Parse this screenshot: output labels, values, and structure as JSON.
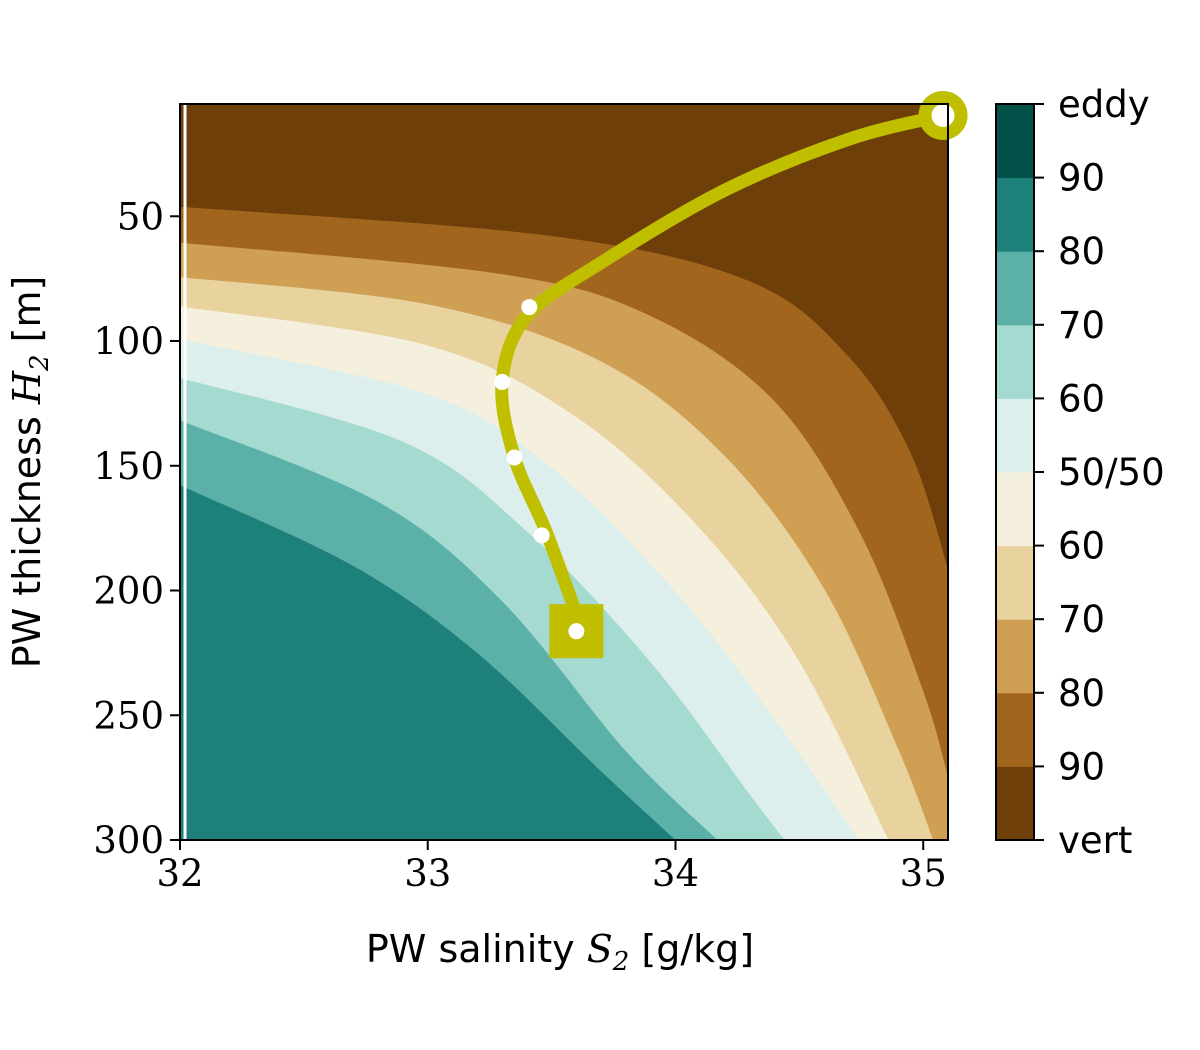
{
  "chart_data": {
    "type": "contour",
    "xlabel": {
      "prefix": "PW salinity ",
      "symbol": "S",
      "subscript": "2",
      "unit": " [g/kg]"
    },
    "ylabel": {
      "prefix": "PW thickness ",
      "symbol": "H",
      "subscript": "2",
      "unit": " [m]"
    },
    "xlim": [
      32,
      35.1
    ],
    "ylim": [
      300,
      5
    ],
    "y_inverted": true,
    "xticks": [
      32,
      33,
      34,
      35
    ],
    "yticks": [
      50,
      100,
      150,
      200,
      250,
      300
    ],
    "contour_levels": [
      {
        "label": "vert 90+",
        "color": "#6e3f08"
      },
      {
        "label": "90",
        "color": "#a2651e"
      },
      {
        "label": "80",
        "color": "#cf9f54"
      },
      {
        "label": "70",
        "color": "#e8d29e"
      },
      {
        "label": "60",
        "color": "#f5efde"
      },
      {
        "label": "50/50",
        "color": "#dcefed"
      },
      {
        "label": "60",
        "color": "#a5dad1"
      },
      {
        "label": "70",
        "color": "#5bb1a8"
      },
      {
        "label": "80",
        "color": "#1d807a"
      },
      {
        "label": "90+",
        "color": "#02524a"
      }
    ],
    "contour_boundaries": [
      [
        [
          32.0,
          46.2
        ],
        [
          33.5,
          57.9
        ],
        [
          34.3,
          76.1
        ],
        [
          34.7,
          106.4
        ],
        [
          34.95,
          145.1
        ],
        [
          35.1,
          191.4
        ]
      ],
      [
        [
          32.0,
          60.6
        ],
        [
          33.3,
          73.2
        ],
        [
          33.9,
          90.0
        ],
        [
          34.4,
          124.2
        ],
        [
          34.75,
          178.0
        ],
        [
          35.0,
          240.4
        ],
        [
          35.1,
          274.6
        ]
      ],
      [
        [
          32.0,
          74.4
        ],
        [
          33.0,
          85.3
        ],
        [
          33.7,
          108.2
        ],
        [
          34.2,
          146.2
        ],
        [
          34.6,
          199.3
        ],
        [
          34.9,
          263.8
        ],
        [
          35.04,
          300.0
        ]
      ],
      [
        [
          32.0,
          86.1
        ],
        [
          33.0,
          101.8
        ],
        [
          33.6,
          130.5
        ],
        [
          34.1,
          175.3
        ],
        [
          34.5,
          228.5
        ],
        [
          34.86,
          300.0
        ]
      ],
      [
        [
          32.0,
          99.3
        ],
        [
          33.0,
          121.4
        ],
        [
          33.5,
          151.0
        ],
        [
          34.0,
          200.6
        ],
        [
          34.4,
          251.6
        ],
        [
          34.74,
          300.0
        ]
      ],
      [
        [
          32.0,
          114.8
        ],
        [
          32.9,
          140.4
        ],
        [
          33.4,
          176.3
        ],
        [
          33.9,
          228.8
        ],
        [
          34.3,
          281.8
        ],
        [
          34.44,
          300.0
        ]
      ],
      [
        [
          32.0,
          131.8
        ],
        [
          32.8,
          164.5
        ],
        [
          33.3,
          204.3
        ],
        [
          33.8,
          264.4
        ],
        [
          34.17,
          300.0
        ]
      ],
      [
        [
          32.0,
          157.8
        ],
        [
          32.7,
          190.2
        ],
        [
          33.2,
          225.1
        ],
        [
          33.7,
          272.5
        ],
        [
          34.0,
          300.0
        ]
      ]
    ],
    "trajectory": [
      [
        35.08,
        9.6
      ],
      [
        34.7,
        19.1
      ],
      [
        34.2,
        39.5
      ],
      [
        33.7,
        68.6
      ],
      [
        33.4,
        90.0
      ],
      [
        33.3,
        116.4
      ],
      [
        33.35,
        146.7
      ],
      [
        33.48,
        177.0
      ],
      [
        33.62,
        215.0
      ]
    ],
    "trajectory_color": "#bfbf00",
    "start_marker": {
      "shape": "circle",
      "x": 35.08,
      "y": 9.6
    },
    "end_marker": {
      "shape": "square",
      "x": 33.6,
      "y": 216.3
    },
    "white_points": [
      [
        35.08,
        9.6
      ],
      [
        33.41,
        86.4
      ],
      [
        33.3,
        116.4
      ],
      [
        33.35,
        146.7
      ],
      [
        33.46,
        177.9
      ],
      [
        33.6,
        216.3
      ]
    ],
    "colorbar": {
      "tick_labels": [
        "vert",
        "90",
        "80",
        "70",
        "60",
        "50/50",
        "60",
        "70",
        "80",
        "90",
        "eddy"
      ]
    }
  }
}
